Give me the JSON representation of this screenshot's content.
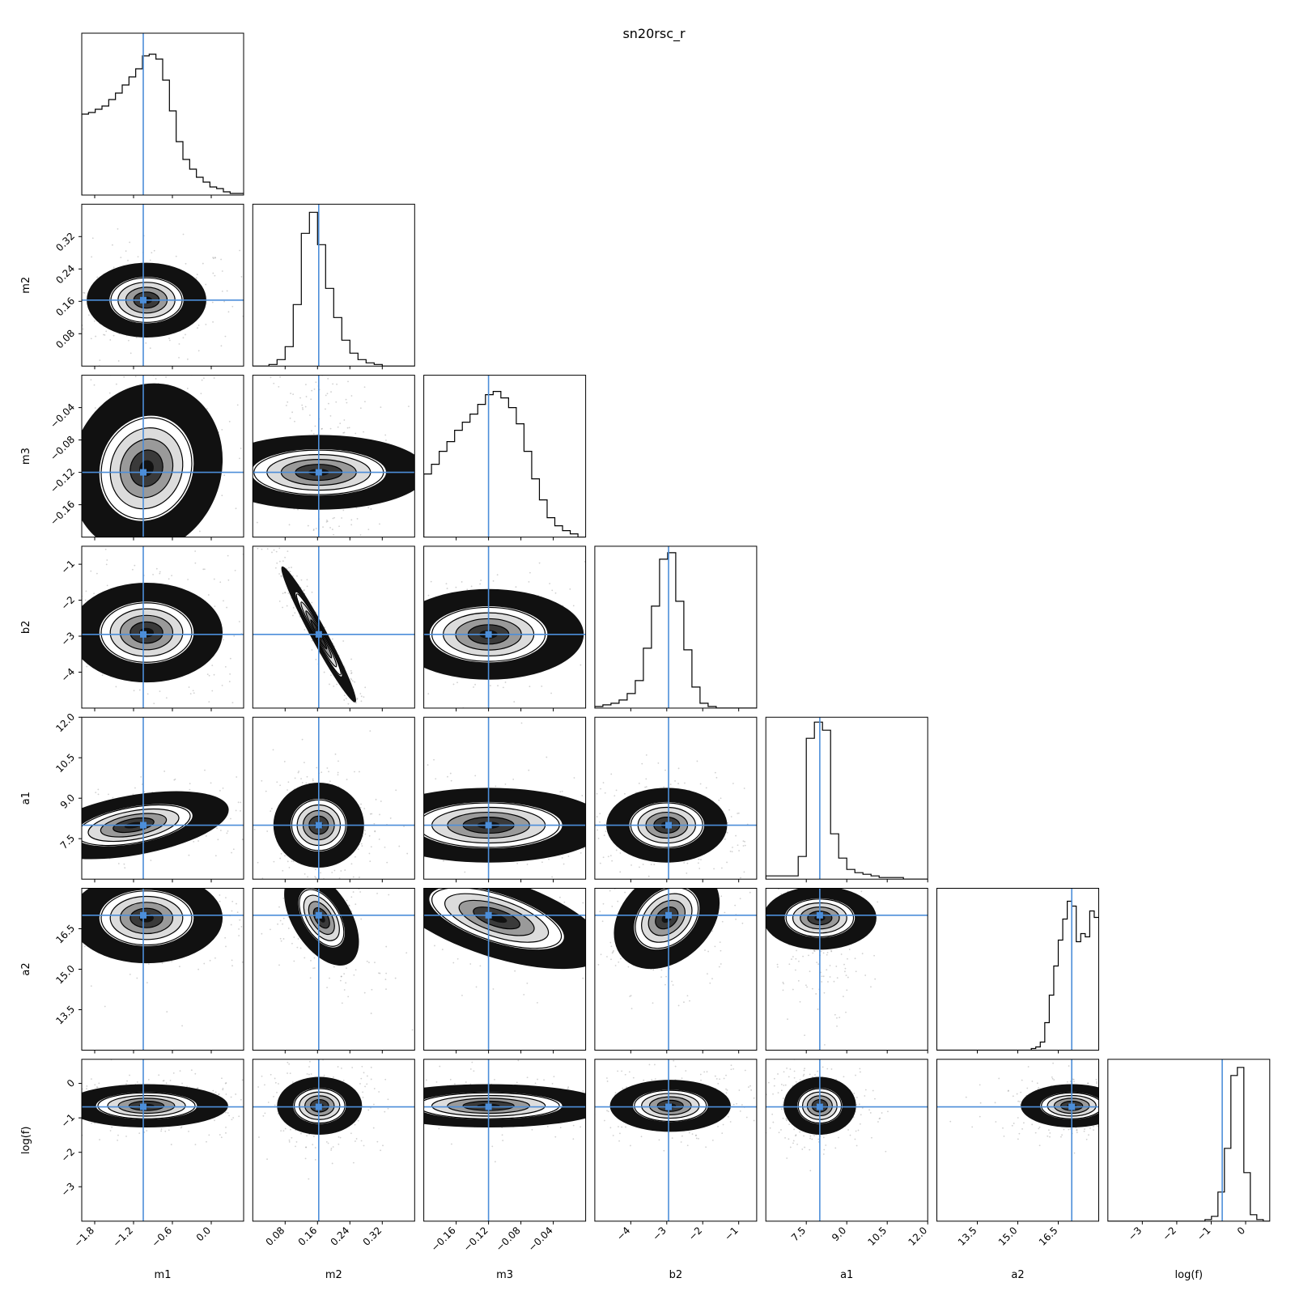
{
  "chart_data": {
    "type": "corner",
    "title": "sn20rsc_r",
    "params": [
      "m1",
      "m2",
      "m3",
      "b2",
      "a1",
      "a2",
      "log(f)"
    ],
    "ranges": [
      [
        -2.0,
        0.5
      ],
      [
        0.0,
        0.4
      ],
      [
        -0.2,
        0.0
      ],
      [
        -5.0,
        -0.5
      ],
      [
        6.0,
        12.0
      ],
      [
        12.0,
        18.0
      ],
      [
        -4.0,
        0.7
      ]
    ],
    "ticks": [
      {
        "values": [
          -1.8,
          -1.2,
          -0.6,
          0.0
        ],
        "labels": [
          "−1.8",
          "−1.2",
          "−0.6",
          "0.0"
        ]
      },
      {
        "values": [
          0.08,
          0.16,
          0.24,
          0.32
        ],
        "labels": [
          "0.08",
          "0.16",
          "0.24",
          "0.32"
        ]
      },
      {
        "values": [
          -0.16,
          -0.12,
          -0.08,
          -0.04
        ],
        "labels": [
          "−0.16",
          "−0.12",
          "−0.08",
          "−0.04"
        ]
      },
      {
        "values": [
          -4,
          -3,
          -2,
          -1
        ],
        "labels": [
          "−4",
          "−3",
          "−2",
          "−1"
        ]
      },
      {
        "values": [
          7.5,
          9.0,
          10.5,
          12.0
        ],
        "labels": [
          "7.5",
          "9.0",
          "10.5",
          "12.0"
        ]
      },
      {
        "values": [
          13.5,
          15.0,
          16.5
        ],
        "labels": [
          "13.5",
          "15.0",
          "16.5"
        ]
      },
      {
        "values": [
          -3,
          -2,
          -1,
          0
        ],
        "labels": [
          "−3",
          "−2",
          "−1",
          "0"
        ]
      }
    ],
    "truths": [
      -1.05,
      0.163,
      -0.12,
      -2.95,
      8.0,
      17.0,
      -0.68
    ],
    "truth_color": "#4c8ed9",
    "histograms": [
      [
        0.5,
        0.51,
        0.53,
        0.55,
        0.59,
        0.63,
        0.68,
        0.73,
        0.78,
        0.86,
        0.87,
        0.84,
        0.71,
        0.52,
        0.33,
        0.22,
        0.16,
        0.11,
        0.08,
        0.05,
        0.04,
        0.02,
        0.01,
        0.01
      ],
      [
        0.0,
        0.0,
        0.01,
        0.04,
        0.12,
        0.38,
        0.82,
        0.95,
        0.75,
        0.48,
        0.3,
        0.16,
        0.08,
        0.04,
        0.02,
        0.01,
        0.0,
        0.0,
        0.0,
        0.0
      ],
      [
        0.39,
        0.45,
        0.53,
        0.59,
        0.66,
        0.71,
        0.76,
        0.82,
        0.88,
        0.9,
        0.86,
        0.8,
        0.7,
        0.53,
        0.36,
        0.23,
        0.12,
        0.07,
        0.04,
        0.02,
        0.0
      ],
      [
        0.01,
        0.02,
        0.03,
        0.05,
        0.09,
        0.17,
        0.37,
        0.63,
        0.92,
        0.96,
        0.66,
        0.36,
        0.13,
        0.03,
        0.01,
        0.0,
        0.0,
        0.0,
        0.0,
        0.0
      ],
      [
        0.02,
        0.02,
        0.02,
        0.02,
        0.14,
        0.87,
        0.97,
        0.92,
        0.28,
        0.13,
        0.06,
        0.04,
        0.03,
        0.02,
        0.01,
        0.01,
        0.01,
        0.0,
        0.0,
        0.0
      ],
      [
        0.0,
        0.0,
        0.0,
        0.0,
        0.0,
        0.0,
        0.0,
        0.0,
        0.0,
        0.0,
        0.0,
        0.0,
        0.0,
        0.0,
        0.0,
        0.0,
        0.0,
        0.0,
        0.0,
        0.0,
        0.0,
        0.01,
        0.02,
        0.05,
        0.17,
        0.34,
        0.52,
        0.68,
        0.81,
        0.92,
        0.89,
        0.67,
        0.72,
        0.7,
        0.86,
        0.82
      ],
      [
        0.0,
        0.0,
        0.0,
        0.0,
        0.0,
        0.0,
        0.0,
        0.0,
        0.0,
        0.0,
        0.0,
        0.0,
        0.0,
        0.0,
        0.0,
        0.01,
        0.03,
        0.18,
        0.45,
        0.9,
        0.95,
        0.3,
        0.04,
        0.01,
        0.0
      ]
    ],
    "blobs": [
      {
        "row": 1,
        "col": 0,
        "cx": -1.0,
        "cy": 0.163,
        "sx": 0.22,
        "sy": 0.022,
        "rho": 0.0
      },
      {
        "row": 2,
        "col": 0,
        "cx": -1.0,
        "cy": -0.115,
        "sx": 0.28,
        "sy": 0.025,
        "rho": 0.1
      },
      {
        "row": 2,
        "col": 1,
        "cx": 0.163,
        "cy": -0.12,
        "sx": 0.022,
        "sy": 0.032,
        "rho": 0.0
      },
      {
        "row": 3,
        "col": 0,
        "cx": -1.0,
        "cy": -2.9,
        "sx": 0.28,
        "sy": 0.33,
        "rho": 0.0
      },
      {
        "row": 3,
        "col": 1,
        "cx": 0.163,
        "cy": -2.95,
        "sx": 0.022,
        "sy": 0.45,
        "rho": -0.97
      },
      {
        "row": 3,
        "col": 2,
        "cx": -0.12,
        "cy": -2.95,
        "sx": 0.028,
        "sy": 0.3,
        "rho": 0.0
      },
      {
        "row": 4,
        "col": 0,
        "cx": -1.2,
        "cy": 8.0,
        "sx": 0.35,
        "sy": 0.3,
        "rho": 0.45
      },
      {
        "row": 4,
        "col": 1,
        "cx": 0.163,
        "cy": 8.0,
        "sx": 0.025,
        "sy": 0.4,
        "rho": 0.0
      },
      {
        "row": 4,
        "col": 2,
        "cx": -0.12,
        "cy": 8.0,
        "sx": 0.035,
        "sy": 0.33,
        "rho": 0.0
      },
      {
        "row": 4,
        "col": 3,
        "cx": -3.0,
        "cy": 8.0,
        "sx": 0.4,
        "sy": 0.33,
        "rho": 0.0
      },
      {
        "row": 5,
        "col": 0,
        "cx": -1.0,
        "cy": 16.9,
        "sx": 0.28,
        "sy": 0.4,
        "rho": 0.0
      },
      {
        "row": 5,
        "col": 1,
        "cx": 0.17,
        "cy": 16.9,
        "sx": 0.022,
        "sy": 0.42,
        "rho": -0.5
      },
      {
        "row": 5,
        "col": 2,
        "cx": -0.11,
        "cy": 16.9,
        "sx": 0.032,
        "sy": 0.45,
        "rho": -0.6
      },
      {
        "row": 5,
        "col": 3,
        "cx": -3.0,
        "cy": 16.9,
        "sx": 0.35,
        "sy": 0.45,
        "rho": 0.3
      },
      {
        "row": 5,
        "col": 4,
        "cx": 8.0,
        "cy": 16.9,
        "sx": 0.28,
        "sy": 0.5,
        "rho": 0.0
      },
      {
        "row": 6,
        "col": 0,
        "cx": -1.0,
        "cy": -0.65,
        "sx": 0.3,
        "sy": 0.15,
        "rho": 0.0
      },
      {
        "row": 6,
        "col": 1,
        "cx": 0.165,
        "cy": -0.65,
        "sx": 0.025,
        "sy": 0.2,
        "rho": 0.0
      },
      {
        "row": 6,
        "col": 2,
        "cx": -0.12,
        "cy": -0.65,
        "sx": 0.035,
        "sy": 0.15,
        "rho": 0.0
      },
      {
        "row": 6,
        "col": 3,
        "cx": -2.9,
        "cy": -0.65,
        "sx": 0.4,
        "sy": 0.18,
        "rho": 0.0
      },
      {
        "row": 6,
        "col": 4,
        "cx": 8.0,
        "cy": -0.65,
        "sx": 0.32,
        "sy": 0.2,
        "rho": 0.0
      },
      {
        "row": 6,
        "col": 5,
        "cx": 17.0,
        "cy": -0.65,
        "sx": 0.45,
        "sy": 0.15,
        "rho": 0.0
      }
    ]
  }
}
